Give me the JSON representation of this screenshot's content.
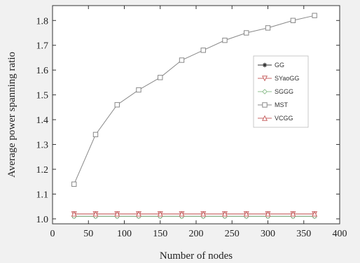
{
  "chart_data": {
    "type": "line",
    "xlabel": "Number of nodes",
    "ylabel": "Average power spanning ratio",
    "xlim": [
      0,
      400
    ],
    "ylim": [
      0.98,
      1.86
    ],
    "xticks": [
      0,
      50,
      100,
      150,
      200,
      250,
      300,
      350,
      400
    ],
    "yticks": [
      1.0,
      1.1,
      1.2,
      1.3,
      1.4,
      1.5,
      1.6,
      1.7,
      1.8
    ],
    "grid": false,
    "legend_position": "right",
    "x": [
      30,
      60,
      90,
      120,
      150,
      180,
      210,
      240,
      270,
      300,
      335,
      365
    ],
    "series": [
      {
        "name": "GG",
        "marker": "star",
        "color": "#333333",
        "values": [
          1.01,
          1.01,
          1.01,
          1.01,
          1.01,
          1.01,
          1.01,
          1.01,
          1.01,
          1.01,
          1.01,
          1.01
        ]
      },
      {
        "name": "SYaoGG",
        "marker": "triangle-down",
        "color": "#c86464",
        "values": [
          1.02,
          1.02,
          1.02,
          1.02,
          1.02,
          1.02,
          1.02,
          1.02,
          1.02,
          1.02,
          1.02,
          1.02
        ]
      },
      {
        "name": "SGGG",
        "marker": "diamond",
        "color": "#8fbf8f",
        "values": [
          1.01,
          1.01,
          1.01,
          1.01,
          1.01,
          1.01,
          1.01,
          1.01,
          1.01,
          1.01,
          1.01,
          1.01
        ]
      },
      {
        "name": "MST",
        "marker": "square",
        "color": "#888888",
        "values": [
          1.14,
          1.34,
          1.46,
          1.52,
          1.57,
          1.64,
          1.68,
          1.72,
          1.75,
          1.77,
          1.8,
          1.82
        ]
      },
      {
        "name": "VCGG",
        "marker": "triangle-up",
        "color": "#c86464",
        "values": [
          1.02,
          1.02,
          1.02,
          1.02,
          1.02,
          1.02,
          1.02,
          1.02,
          1.02,
          1.02,
          1.02,
          1.02
        ]
      }
    ]
  }
}
